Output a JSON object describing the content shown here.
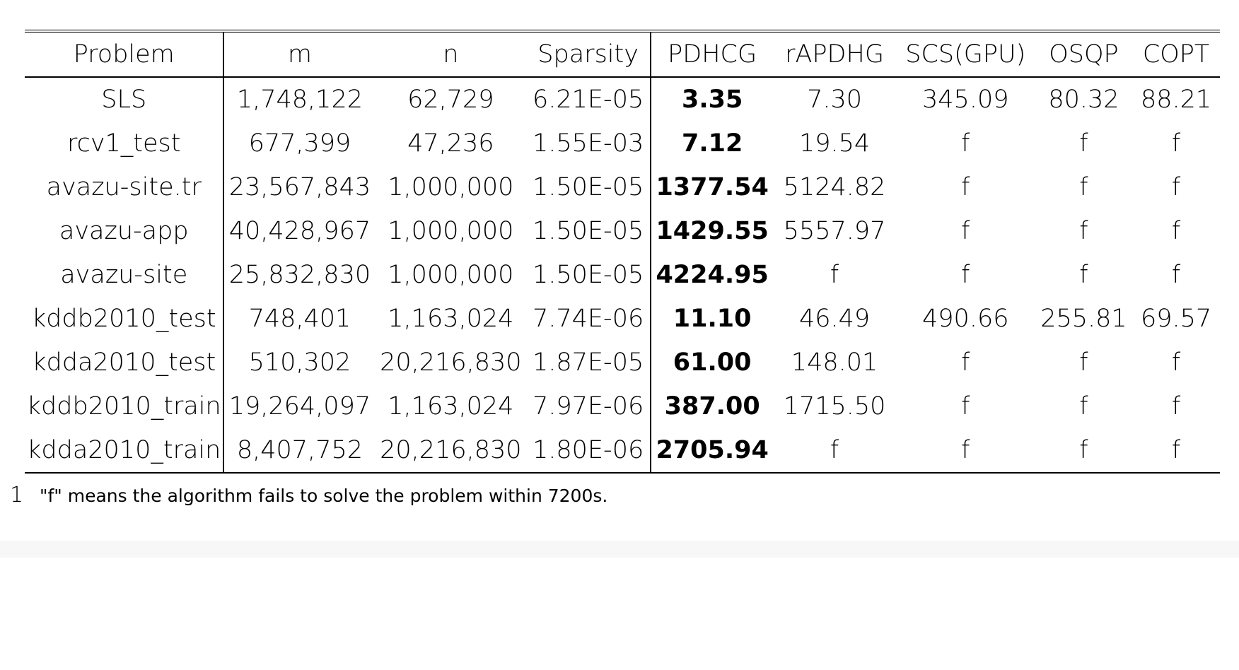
{
  "table": {
    "headers": [
      "Problem",
      "m",
      "n",
      "Sparsity",
      "PDHCG",
      "rAPDHG",
      "SCS(GPU)",
      "OSQP",
      "COPT"
    ],
    "rows": [
      [
        "SLS",
        "1,748,122",
        "62,729",
        "6.21E-05",
        "3.35",
        "7.30",
        "345.09",
        "80.32",
        "88.21"
      ],
      [
        "rcv1_test",
        "677,399",
        "47,236",
        "1.55E-03",
        "7.12",
        "19.54",
        "f",
        "f",
        "f"
      ],
      [
        "avazu-site.tr",
        "23,567,843",
        "1,000,000",
        "1.50E-05",
        "1377.54",
        "5124.82",
        "f",
        "f",
        "f"
      ],
      [
        "avazu-app",
        "40,428,967",
        "1,000,000",
        "1.50E-05",
        "1429.55",
        "5557.97",
        "f",
        "f",
        "f"
      ],
      [
        "avazu-site",
        "25,832,830",
        "1,000,000",
        "1.50E-05",
        "4224.95",
        "f",
        "f",
        "f",
        "f"
      ],
      [
        "kddb2010_test",
        "748,401",
        "1,163,024",
        "7.74E-06",
        "11.10",
        "46.49",
        "490.66",
        "255.81",
        "69.57"
      ],
      [
        "kdda2010_test",
        "510,302",
        "20,216,830",
        "1.87E-05",
        "61.00",
        "148.01",
        "f",
        "f",
        "f"
      ],
      [
        "kddb2010_train",
        "19,264,097",
        "1,163,024",
        "7.97E-06",
        "387.00",
        "1715.50",
        "f",
        "f",
        "f"
      ],
      [
        "kdda2010_train",
        "8,407,752",
        "20,216,830",
        "1.80E-06",
        "2705.94",
        "f",
        "f",
        "f",
        "f"
      ]
    ]
  },
  "footnote": {
    "mark": "1",
    "text": "\"f\" means the algorithm fails to solve the problem within 7200s."
  }
}
